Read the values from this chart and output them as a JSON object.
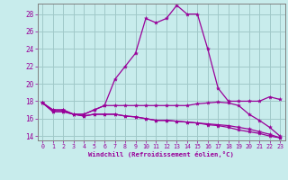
{
  "xlabel": "Windchill (Refroidissement éolien,°C)",
  "bg_color": "#c8ecec",
  "grid_color": "#a0c8c8",
  "line_color": "#990099",
  "spine_color": "#808080",
  "x_ticks": [
    0,
    1,
    2,
    3,
    4,
    5,
    6,
    7,
    8,
    9,
    10,
    11,
    12,
    13,
    14,
    15,
    16,
    17,
    18,
    19,
    20,
    21,
    22,
    23
  ],
  "y_ticks": [
    14,
    16,
    18,
    20,
    22,
    24,
    26,
    28
  ],
  "xlim": [
    -0.5,
    23.5
  ],
  "ylim": [
    13.5,
    29.2
  ],
  "curves": [
    {
      "x": [
        0,
        1,
        2,
        3,
        4,
        5,
        6,
        7,
        8,
        9,
        10,
        11,
        12,
        13,
        14,
        15,
        16,
        17,
        18,
        19,
        20,
        21,
        22,
        23
      ],
      "y": [
        17.8,
        17.0,
        17.0,
        16.5,
        16.5,
        17.0,
        17.5,
        20.5,
        22.0,
        23.5,
        27.5,
        27.0,
        27.5,
        29.0,
        28.0,
        28.0,
        24.0,
        19.5,
        18.0,
        18.0,
        18.0,
        18.0,
        18.5,
        18.2
      ]
    },
    {
      "x": [
        0,
        1,
        2,
        3,
        4,
        5,
        6,
        7,
        8,
        9,
        10,
        11,
        12,
        13,
        14,
        15,
        16,
        17,
        18,
        19,
        20,
        21,
        22,
        23
      ],
      "y": [
        17.8,
        17.0,
        17.0,
        16.5,
        16.5,
        17.0,
        17.5,
        17.5,
        17.5,
        17.5,
        17.5,
        17.5,
        17.5,
        17.5,
        17.5,
        17.7,
        17.8,
        17.9,
        17.8,
        17.5,
        16.5,
        15.8,
        15.0,
        14.0
      ]
    },
    {
      "x": [
        0,
        1,
        2,
        3,
        4,
        5,
        6,
        7,
        8,
        9,
        10,
        11,
        12,
        13,
        14,
        15,
        16,
        17,
        18,
        19,
        20,
        21,
        22,
        23
      ],
      "y": [
        17.8,
        16.8,
        16.8,
        16.5,
        16.3,
        16.5,
        16.5,
        16.5,
        16.3,
        16.2,
        16.0,
        15.8,
        15.8,
        15.7,
        15.6,
        15.5,
        15.3,
        15.2,
        15.0,
        14.7,
        14.5,
        14.3,
        14.0,
        13.8
      ]
    },
    {
      "x": [
        0,
        1,
        2,
        3,
        4,
        5,
        6,
        7,
        8,
        9,
        10,
        11,
        12,
        13,
        14,
        15,
        16,
        17,
        18,
        19,
        20,
        21,
        22,
        23
      ],
      "y": [
        17.8,
        16.8,
        16.8,
        16.5,
        16.3,
        16.5,
        16.5,
        16.5,
        16.3,
        16.2,
        16.0,
        15.8,
        15.8,
        15.7,
        15.6,
        15.5,
        15.4,
        15.3,
        15.2,
        15.0,
        14.8,
        14.5,
        14.2,
        13.8
      ]
    }
  ]
}
